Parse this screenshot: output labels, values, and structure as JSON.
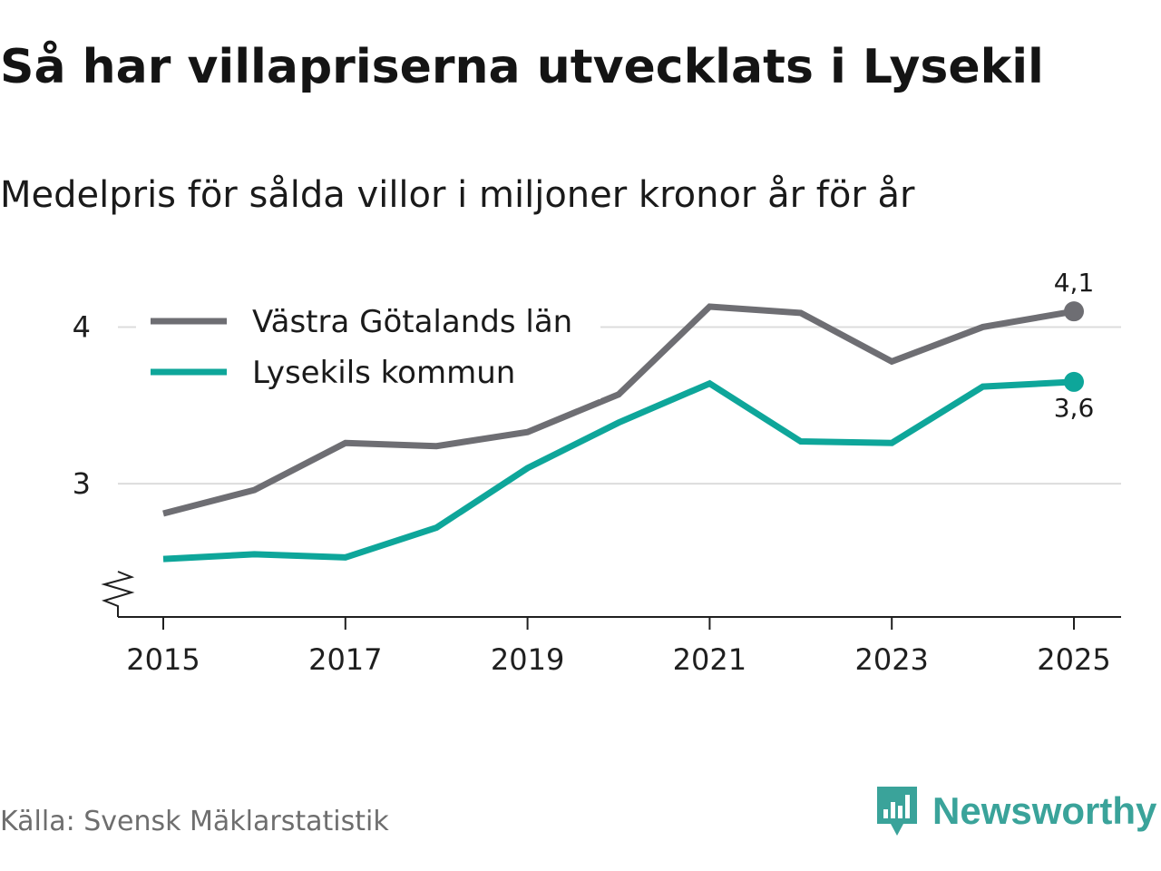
{
  "title": "Så har villapriserna utvecklats i Lysekil",
  "subtitle": "Medelpris för sålda villor i miljoner kronor år för år",
  "source": "Källa: Svensk Mäklarstatistik",
  "brand": {
    "name": "Newsworthy",
    "icon": "newsworthy-logo-icon",
    "color": "#3aa39a"
  },
  "chart_data": {
    "type": "line",
    "title": "Så har villapriserna utvecklats i Lysekil",
    "subtitle": "Medelpris för sålda villor i miljoner kronor år för år",
    "xlabel": "",
    "ylabel": "",
    "x": [
      2015,
      2016,
      2017,
      2018,
      2019,
      2020,
      2021,
      2022,
      2023,
      2024,
      2025
    ],
    "x_ticks": [
      "2015",
      "2017",
      "2019",
      "2021",
      "2023",
      "2025"
    ],
    "y_ticks": [
      "3",
      "4"
    ],
    "ylim": [
      2.15,
      4.35
    ],
    "y_axis_break": true,
    "grid": true,
    "legend_position": "top-left",
    "series": [
      {
        "name": "Västra Götalands län",
        "color": "#6e6e73",
        "values": [
          2.81,
          2.96,
          3.26,
          3.24,
          3.33,
          3.57,
          4.13,
          4.09,
          3.78,
          4.0,
          4.1
        ],
        "end_label": "4,1"
      },
      {
        "name": "Lysekils kommun",
        "color": "#0ea69a",
        "values": [
          2.52,
          2.55,
          2.53,
          2.72,
          3.1,
          3.39,
          3.64,
          3.27,
          3.26,
          3.62,
          3.65
        ],
        "end_label": "3,6"
      }
    ]
  }
}
